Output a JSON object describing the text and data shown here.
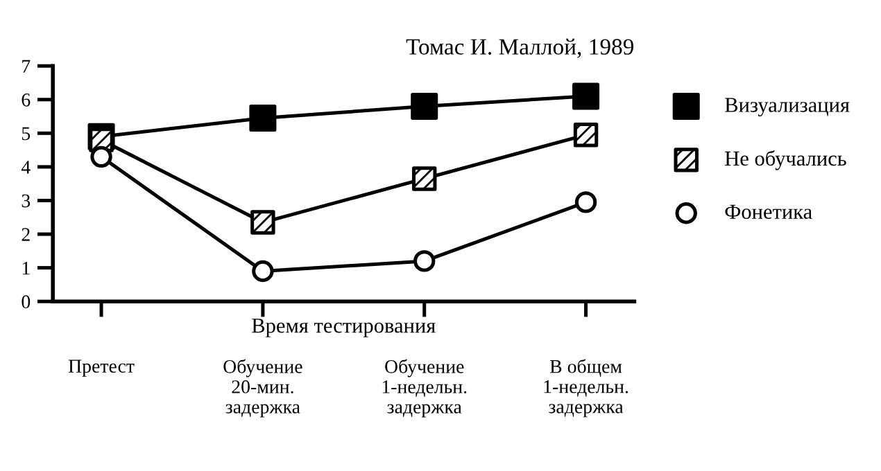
{
  "chart_data": {
    "type": "line",
    "title": "Томас И. Маллой, 1989",
    "categories": [
      "Претест",
      "Обучение\n20-мин.\nзадержка",
      "Обучение\n1-недельн.\nзадержка",
      "В общем\n1-недельн.\nзадержка"
    ],
    "xlabel": "Время тестирования",
    "series": [
      {
        "name": "Визуализация",
        "color": "#000000",
        "marker": "square",
        "values": [
          4.9,
          5.45,
          5.8,
          6.1
        ]
      },
      {
        "name": "Не обучались",
        "color": "#000000",
        "marker": "square",
        "values": [
          4.8,
          2.35,
          3.65,
          4.95
        ]
      },
      {
        "name": "Фонетика",
        "color": "#000000",
        "marker": "circle",
        "values": [
          4.3,
          0.9,
          1.2,
          2.95
        ]
      }
    ],
    "ylim": [
      0,
      7
    ],
    "yticks": [
      0,
      1,
      2,
      3,
      4,
      5,
      6,
      7
    ],
    "legend": "right",
    "grid": false,
    "line_style": "solid"
  }
}
